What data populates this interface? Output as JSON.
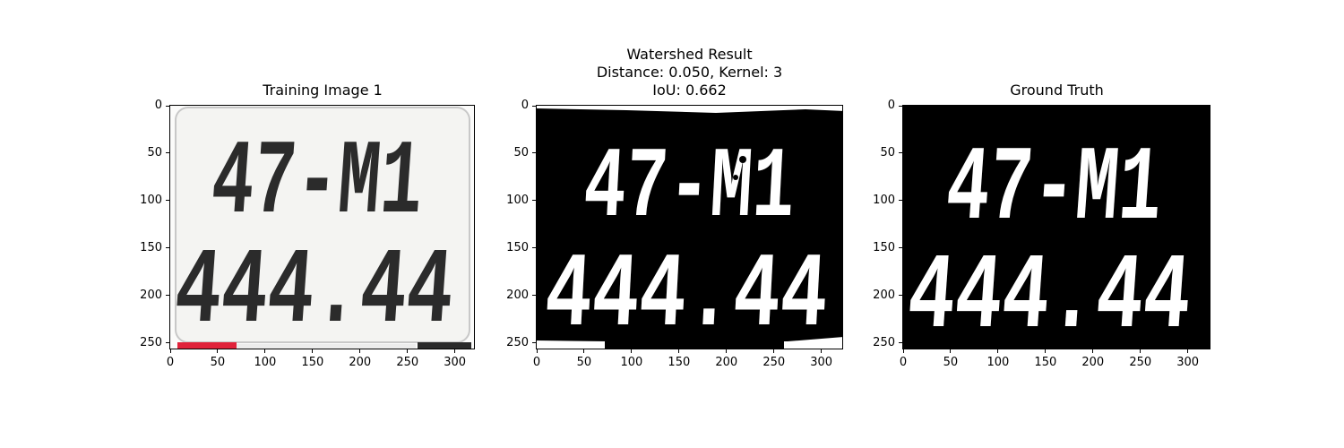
{
  "panels": [
    {
      "title": "Training Image 1"
    },
    {
      "title": "Watershed Result\nDistance: 0.050, Kernel: 3\nIoU: 0.662"
    },
    {
      "title": "Ground Truth"
    }
  ],
  "plate": {
    "line1": "47-M1",
    "line2": "444.44"
  },
  "axes": {
    "xticks": [
      "0",
      "50",
      "100",
      "150",
      "200",
      "250",
      "300"
    ],
    "yticks": [
      "0",
      "50",
      "100",
      "150",
      "200",
      "250"
    ]
  },
  "colors": {
    "plate_background": "#f4f4f2",
    "plate_text": "#2b2b2b",
    "mask_fg": "#ffffff",
    "mask_bg": "#000000",
    "red_strip": "#e0223a"
  }
}
